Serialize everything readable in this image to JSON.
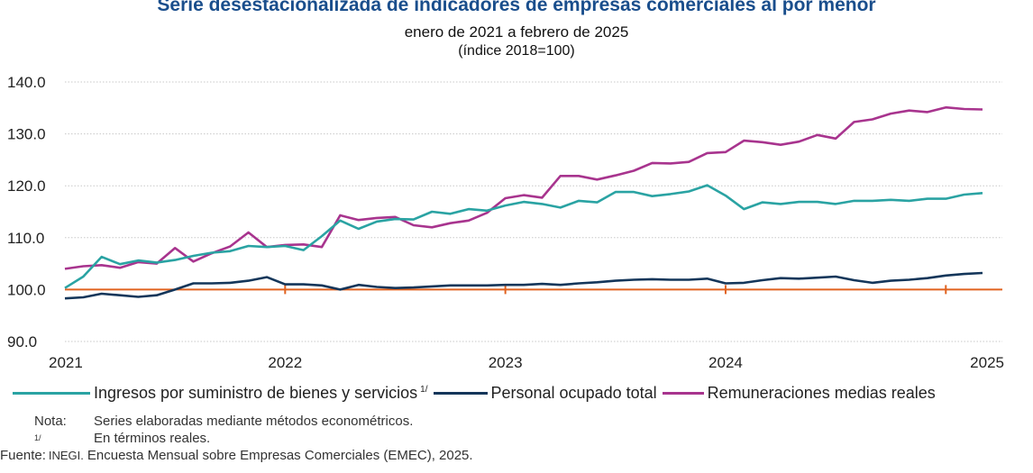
{
  "title": "Serie desestacionalizada de indicadores de empresas comerciales al por menor",
  "subtitle": "enero de 2021 a febrero de 2025",
  "subtitle2": "(índice 2018=100)",
  "legend": {
    "ingresos": "Ingresos por suministro de bienes y servicios",
    "ingresos_note": "1/",
    "personal": "Personal ocupado total",
    "remuneraciones": "Remuneraciones medias reales"
  },
  "notes": {
    "nota_label": "Nota:",
    "nota_text": "Series elaboradas mediante métodos econométricos.",
    "note1_label": "1/",
    "note1_text": "En términos reales.",
    "fuente_label": "Fuente:",
    "fuente_prefix": "INEGI.",
    "fuente_text": "Encuesta Mensual sobre Empresas Comerciales (EMEC), 2025."
  },
  "colors": {
    "ingresos": "#2aa3a3",
    "personal": "#14365a",
    "remuneraciones": "#a8348e",
    "baseline": "#e0621f",
    "title": "#1a4e8c"
  },
  "chart_data": {
    "type": "line",
    "ylim": [
      90,
      140
    ],
    "yticks": [
      "140.0",
      "130.0",
      "120.0",
      "110.0",
      "100.0",
      "90.0"
    ],
    "ytick_values": [
      140,
      130,
      120,
      110,
      100,
      90
    ],
    "xticks": [
      "2021",
      "2022",
      "2023",
      "2024",
      "2025"
    ],
    "x_start": "2021-01",
    "x_end": "2025-02",
    "baseline": 100,
    "grid": true,
    "series": [
      {
        "key": "ingresos",
        "name": "Ingresos por suministro de bienes y servicios",
        "values": [
          100.3,
          102.5,
          106.3,
          104.9,
          105.6,
          105.2,
          105.7,
          106.5,
          107.1,
          107.4,
          108.4,
          108.2,
          108.4,
          107.6,
          110.3,
          113.3,
          111.7,
          113.1,
          113.6,
          113.5,
          115.0,
          114.6,
          115.5,
          115.2,
          116.2,
          116.9,
          116.5,
          115.8,
          117.1,
          116.8,
          118.8,
          118.8,
          118.0,
          118.4,
          118.9,
          120.1,
          118.1,
          115.5,
          116.8,
          116.5,
          116.9,
          116.9,
          116.5,
          117.1,
          117.1,
          117.3,
          117.1,
          117.5,
          117.5,
          118.3,
          118.6
        ]
      },
      {
        "key": "personal",
        "name": "Personal ocupado total",
        "values": [
          98.3,
          98.5,
          99.2,
          98.9,
          98.6,
          98.9,
          100.0,
          101.2,
          101.2,
          101.3,
          101.7,
          102.4,
          101.0,
          101.0,
          100.8,
          100.0,
          100.9,
          100.5,
          100.3,
          100.4,
          100.6,
          100.8,
          100.8,
          100.8,
          100.9,
          100.9,
          101.1,
          100.9,
          101.2,
          101.4,
          101.7,
          101.9,
          102.0,
          101.9,
          101.9,
          102.1,
          101.2,
          101.3,
          101.8,
          102.2,
          102.1,
          102.3,
          102.5,
          101.8,
          101.3,
          101.7,
          101.9,
          102.2,
          102.7,
          103.0,
          103.2
        ]
      },
      {
        "key": "remuneraciones",
        "name": "Remuneraciones medias reales",
        "values": [
          104.0,
          104.5,
          104.7,
          104.2,
          105.3,
          105.0,
          108.0,
          105.4,
          107.0,
          108.3,
          111.0,
          108.2,
          108.6,
          108.7,
          108.2,
          114.3,
          113.4,
          113.8,
          114.0,
          112.4,
          112.0,
          112.8,
          113.3,
          114.8,
          117.6,
          118.2,
          117.7,
          121.9,
          121.9,
          121.2,
          122.0,
          122.9,
          124.4,
          124.3,
          124.6,
          126.3,
          126.5,
          128.7,
          128.4,
          127.9,
          128.5,
          129.8,
          129.1,
          132.3,
          132.8,
          133.9,
          134.5,
          134.2,
          135.1,
          134.8,
          134.7
        ]
      }
    ]
  }
}
